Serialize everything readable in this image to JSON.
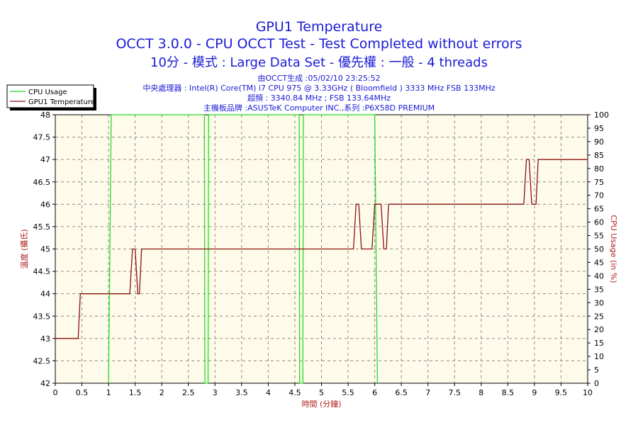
{
  "header": {
    "title": "GPU1 Temperature",
    "subtitle1": "OCCT 3.0.0 - CPU OCCT Test - Test Completed without errors",
    "subtitle2": "10分 - 模式 : Large Data Set - 優先權 : 一般 - 4 threads",
    "info_lines": [
      "由OCCT生成 :05/02/10 23:25:52",
      "中央處理器 : Intel(R) Core(TM) i7 CPU 975 @ 3.33GHz ( Bloomfield ) 3333 MHz FSB 133MHz",
      "超頻 : 3340.84 MHz ; FSB 133.64MHz",
      "主機板品牌 :ASUSTeK Computer INC.,系列 :P6X58D PREMIUM"
    ]
  },
  "colors": {
    "plot_bg": "#fffbea",
    "grid": "#8c8c8c",
    "cpu_usage": "#22dd22",
    "gpu_temp": "#8b1010",
    "axis_text": "#000000",
    "y_label": "#b02020"
  },
  "chart_data": {
    "type": "line",
    "xlabel": "時間 (分鐘)",
    "ylabel_left": "溫度 (攝氏)",
    "ylabel_right": "CPU Usage (in %)",
    "xlim": [
      0,
      10
    ],
    "ylim_left": [
      42,
      48
    ],
    "ylim_right": [
      0,
      100
    ],
    "x_ticks": [
      "0",
      "0.5",
      "1",
      "1.5",
      "2",
      "2.5",
      "3",
      "3.5",
      "4",
      "4.5",
      "5",
      "5.5",
      "6",
      "6.5",
      "7",
      "7.5",
      "8",
      "8.5",
      "9",
      "9.5",
      "10"
    ],
    "y_left_ticks": [
      "42",
      "42.5",
      "43",
      "43.5",
      "44",
      "44.5",
      "45",
      "45.5",
      "46",
      "46.5",
      "47",
      "47.5",
      "48"
    ],
    "y_right_ticks": [
      "0",
      "5",
      "10",
      "15",
      "20",
      "25",
      "30",
      "35",
      "40",
      "45",
      "50",
      "55",
      "60",
      "65",
      "70",
      "75",
      "80",
      "85",
      "90",
      "95",
      "100"
    ],
    "grid": true,
    "legend_position": "top-left",
    "series": [
      {
        "name": "CPU Usage",
        "axis": "right",
        "points": [
          [
            1.0,
            0
          ],
          [
            1.05,
            100
          ],
          [
            2.8,
            100
          ],
          [
            2.81,
            0
          ],
          [
            2.87,
            0
          ],
          [
            2.88,
            100
          ],
          [
            4.58,
            100
          ],
          [
            4.59,
            0
          ],
          [
            4.65,
            0
          ],
          [
            4.66,
            100
          ],
          [
            6.0,
            100
          ],
          [
            6.05,
            0
          ]
        ]
      },
      {
        "name": "GPU1 Temperature",
        "axis": "left",
        "points": [
          [
            0,
            43
          ],
          [
            0.43,
            43
          ],
          [
            0.47,
            44
          ],
          [
            1.4,
            44
          ],
          [
            1.45,
            45
          ],
          [
            1.5,
            45
          ],
          [
            1.55,
            44
          ],
          [
            1.58,
            44
          ],
          [
            1.62,
            45
          ],
          [
            5.6,
            45
          ],
          [
            5.65,
            46
          ],
          [
            5.7,
            46
          ],
          [
            5.75,
            45
          ],
          [
            5.95,
            45
          ],
          [
            6.0,
            46
          ],
          [
            6.12,
            46
          ],
          [
            6.17,
            45
          ],
          [
            6.22,
            45
          ],
          [
            6.26,
            46
          ],
          [
            8.8,
            46
          ],
          [
            8.85,
            47
          ],
          [
            8.9,
            47
          ],
          [
            8.95,
            46
          ],
          [
            9.03,
            46
          ],
          [
            9.07,
            47
          ],
          [
            10,
            47
          ]
        ]
      }
    ]
  }
}
